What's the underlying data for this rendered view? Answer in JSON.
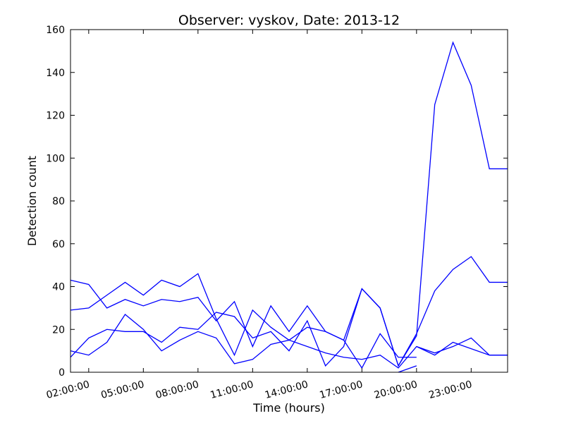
{
  "chart_data": {
    "type": "line",
    "title": "Observer: vyskov, Date: 2013-12",
    "xlabel": "Time (hours)",
    "ylabel": "Detection count",
    "xlim": [
      1,
      25
    ],
    "ylim": [
      0,
      160
    ],
    "grid": false,
    "line_color": "#0000ff",
    "x_tick_values": [
      2,
      5,
      8,
      11,
      14,
      17,
      20,
      23
    ],
    "x_tick_labels": [
      "02:00:00",
      "05:00:00",
      "08:00:00",
      "11:00:00",
      "14:00:00",
      "17:00:00",
      "20:00:00",
      "23:00:00"
    ],
    "y_tick_values": [
      0,
      20,
      40,
      60,
      80,
      100,
      120,
      140,
      160
    ],
    "y_tick_labels": [
      "0",
      "20",
      "40",
      "60",
      "80",
      "100",
      "120",
      "140",
      "160"
    ],
    "series": [
      {
        "x": [
          1,
          2,
          3,
          4,
          5,
          6,
          7,
          8,
          9,
          10,
          11,
          12,
          13,
          14,
          15,
          16,
          17,
          18,
          19,
          20
        ],
        "values": [
          43,
          41,
          30,
          34,
          31,
          34,
          33,
          35,
          24,
          33,
          12,
          31,
          19,
          31,
          19,
          15,
          2,
          18,
          7,
          7
        ]
      },
      {
        "x": [
          1,
          2,
          3,
          4,
          5,
          6,
          7,
          8,
          9,
          10,
          11,
          12,
          13,
          14,
          15,
          16,
          17,
          18,
          19,
          20,
          21,
          22,
          23,
          24,
          25
        ],
        "values": [
          29,
          30,
          36,
          42,
          36,
          43,
          40,
          46,
          25,
          8,
          29,
          21,
          15,
          21,
          19,
          15,
          39,
          30,
          3,
          17,
          125,
          154,
          134,
          95,
          95
        ]
      },
      {
        "x": [
          1,
          2,
          3,
          4,
          5,
          6,
          7,
          8,
          9,
          10,
          11,
          12,
          13,
          14,
          15,
          16,
          17,
          18,
          19,
          20,
          21,
          22,
          23,
          24,
          25
        ],
        "values": [
          7,
          16,
          20,
          19,
          19,
          14,
          21,
          20,
          28,
          26,
          16,
          19,
          10,
          24,
          3,
          12,
          39,
          30,
          3,
          18,
          38,
          48,
          54,
          42,
          42
        ]
      },
      {
        "x": [
          1,
          2,
          3,
          4,
          5,
          6,
          7,
          8,
          9,
          10,
          11,
          12,
          13,
          14,
          15,
          16,
          17,
          18,
          19,
          20,
          21,
          22,
          23,
          24,
          25
        ],
        "values": [
          10,
          8,
          14,
          27,
          20,
          10,
          15,
          19,
          16,
          4,
          6,
          13,
          15,
          12,
          9,
          7,
          6,
          8,
          2,
          12,
          8,
          14,
          11,
          8,
          8
        ]
      },
      {
        "x": [
          19,
          20
        ],
        "values": [
          0,
          3
        ]
      },
      {
        "x": [
          20,
          21,
          22,
          23,
          24,
          25
        ],
        "values": [
          12,
          9,
          12,
          16,
          8,
          8
        ]
      }
    ]
  }
}
